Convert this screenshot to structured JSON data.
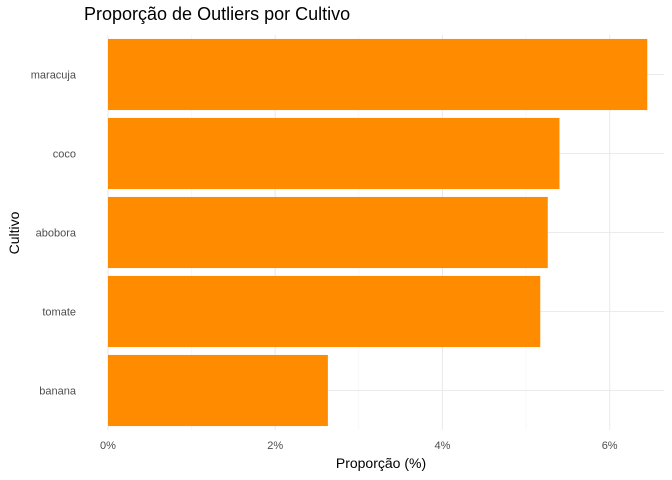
{
  "chart_data": {
    "type": "bar",
    "orientation": "horizontal",
    "title": "Proporção de Outliers por Cultivo",
    "xlabel": "Proporção (%)",
    "ylabel": "Cultivo",
    "categories": [
      "maracuja",
      "coco",
      "abobora",
      "tomate",
      "banana"
    ],
    "values": [
      6.45,
      5.4,
      5.26,
      5.17,
      2.63
    ],
    "xlim": [
      0,
      6.65
    ],
    "xticks": [
      0,
      2,
      4,
      6
    ],
    "xtick_labels": [
      "0%",
      "2%",
      "4%",
      "6%"
    ],
    "bar_color": "#FF8C00",
    "grid": true
  }
}
